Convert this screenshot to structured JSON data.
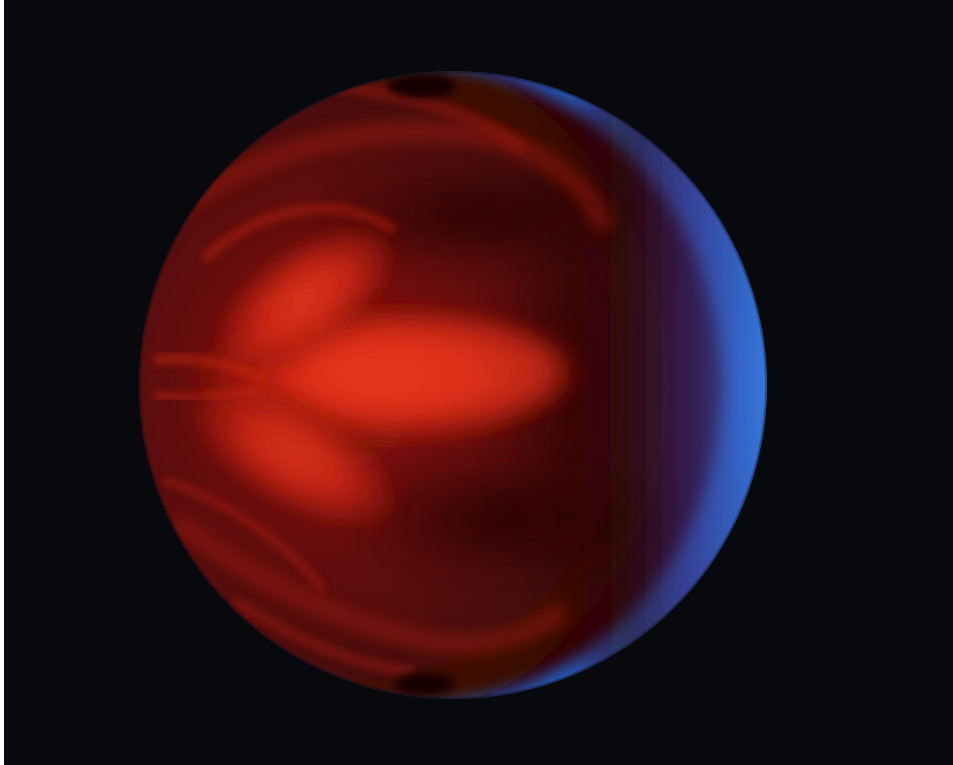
{
  "scene": {
    "subject": "planet-render",
    "colors": {
      "space_background": "#07090c",
      "hot_spot": "#e8321c",
      "mid_red": "#9a1a0c",
      "dark_red": "#3a0706",
      "night_blue": "#2f6fd6",
      "limb_blue": "#3c86e8"
    }
  }
}
